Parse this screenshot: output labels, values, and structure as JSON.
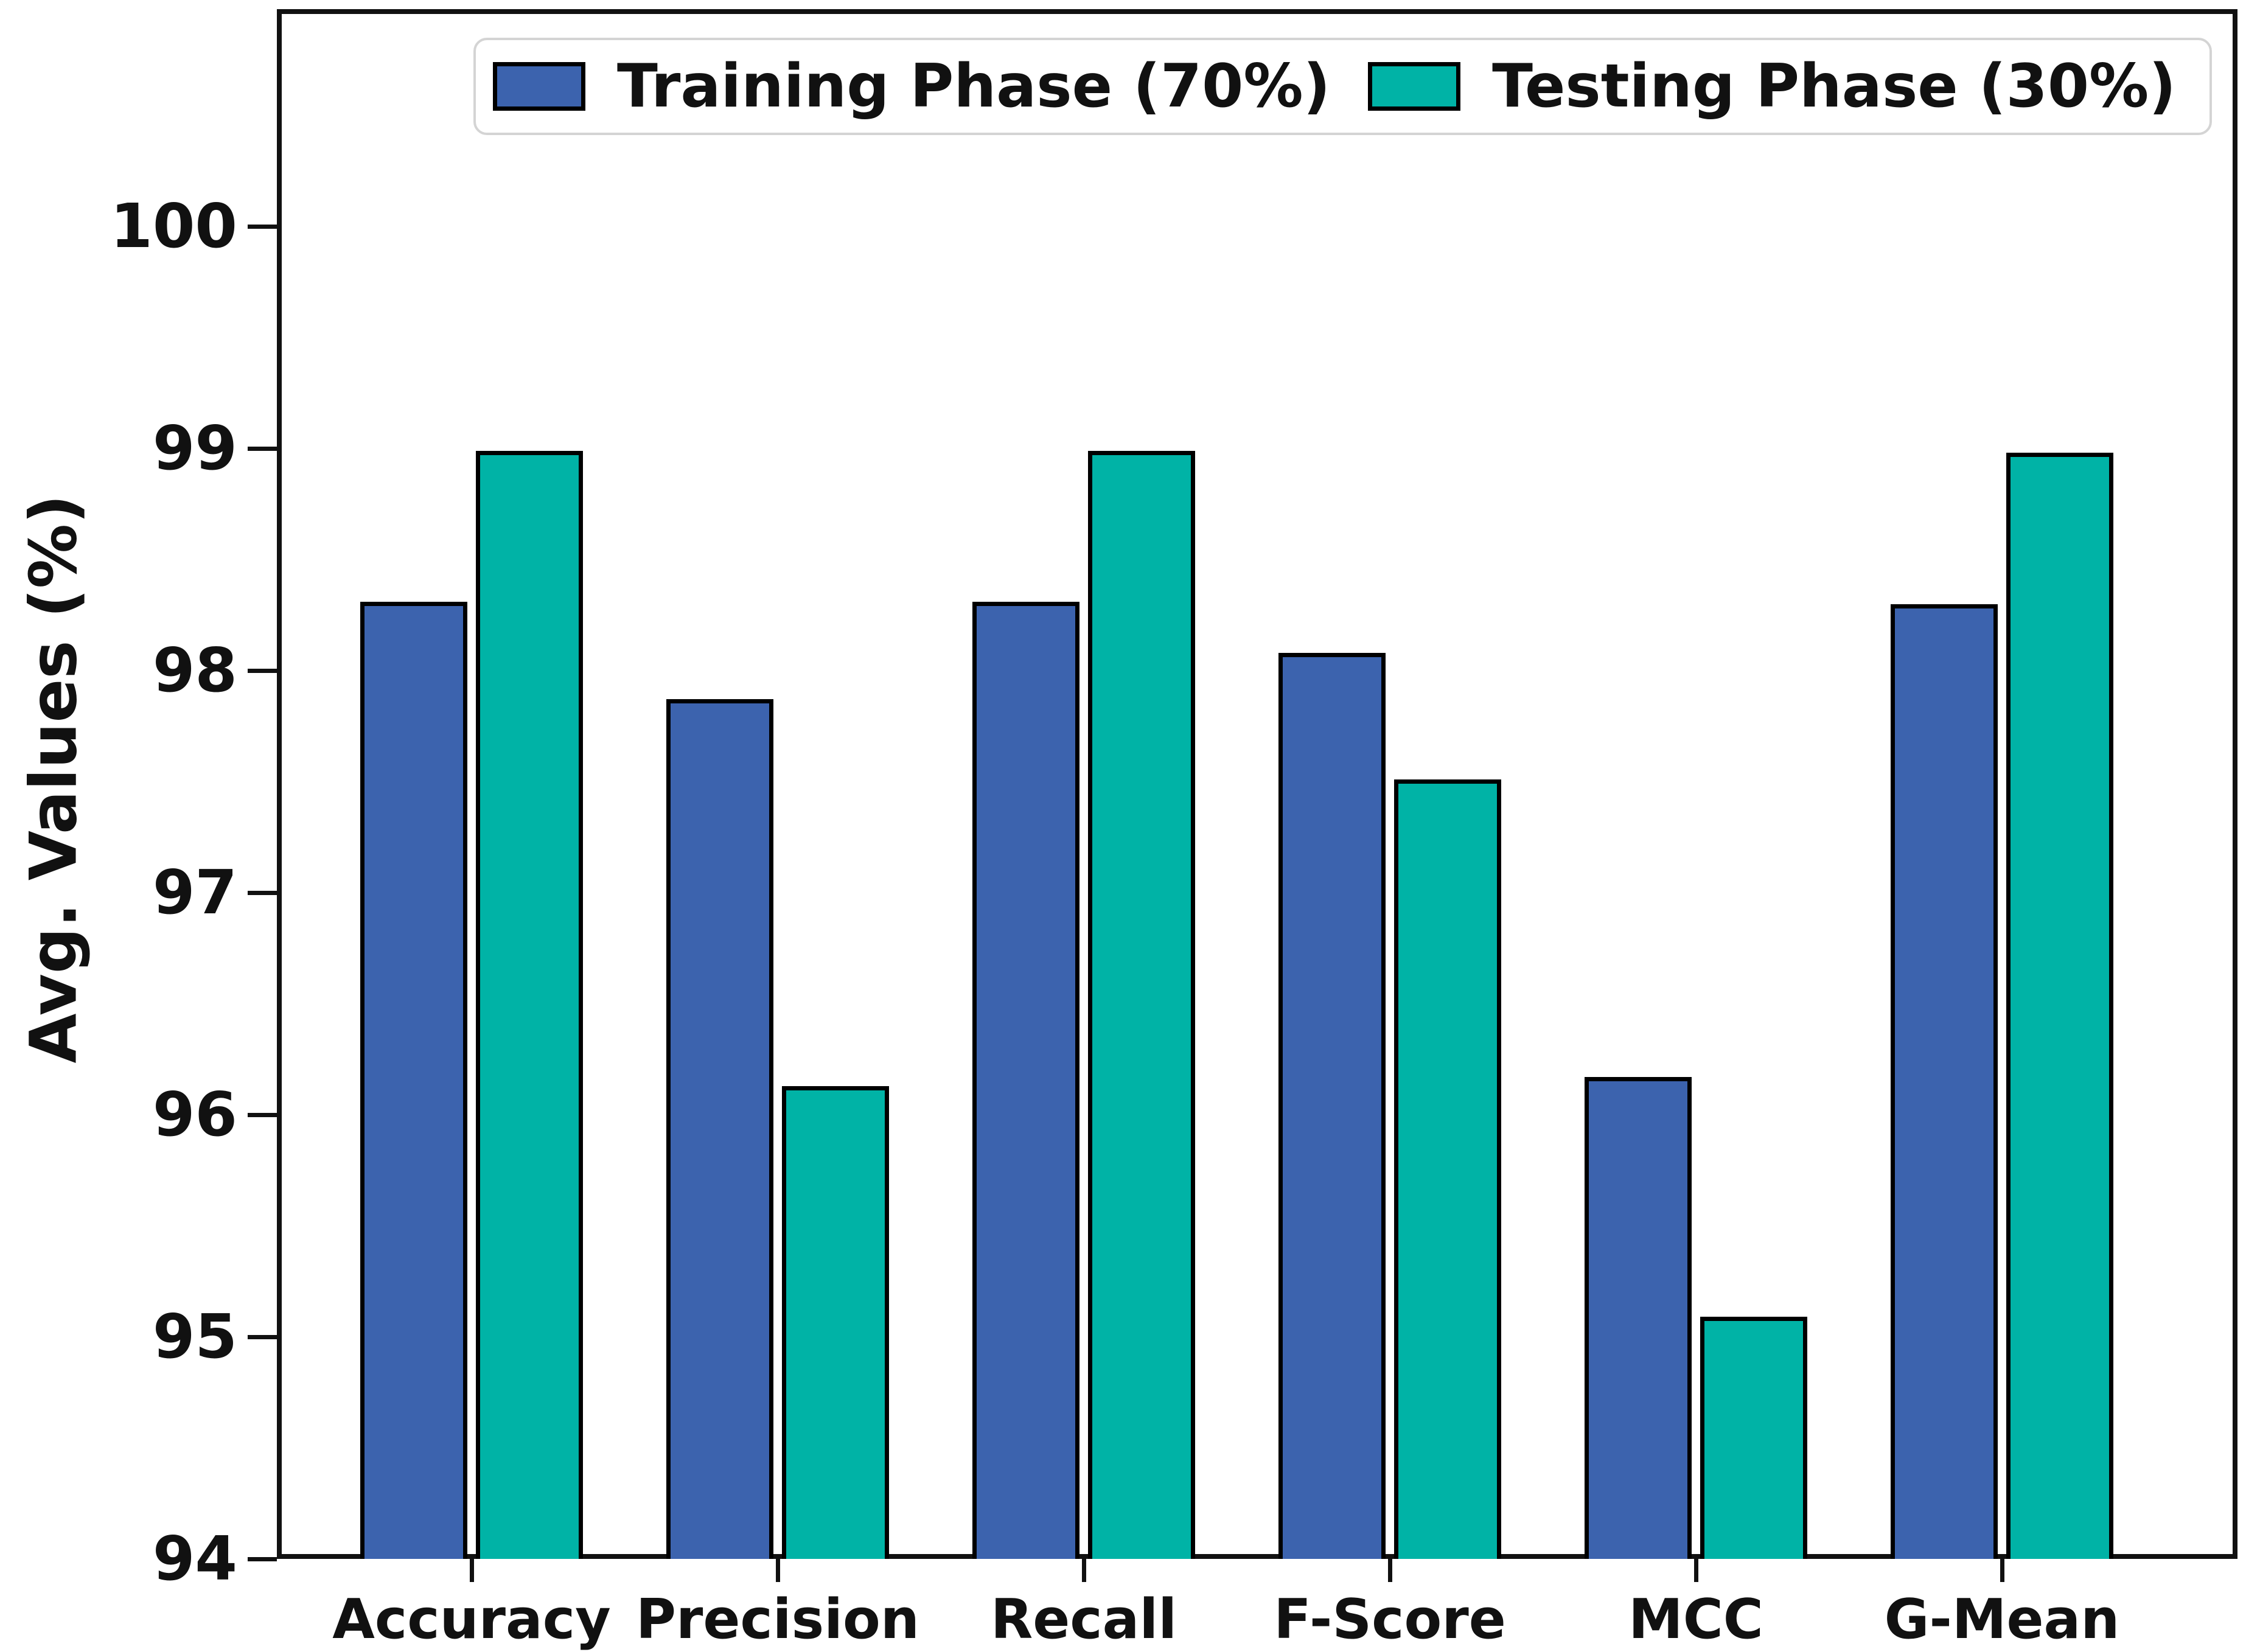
{
  "chart_data": {
    "type": "bar",
    "title": "",
    "categories": [
      "Accuracy",
      "Precision",
      "Recall",
      "F-Score",
      "MCC",
      "G-Mean"
    ],
    "series": [
      {
        "name": "Training Phase (70%)",
        "color": "#3c63ae",
        "values": [
          98.31,
          97.87,
          98.31,
          98.08,
          96.17,
          98.3
        ]
      },
      {
        "name": "Testing Phase (30%)",
        "color": "#00b3a6",
        "values": [
          98.99,
          96.13,
          98.99,
          97.51,
          95.09,
          98.98
        ]
      }
    ],
    "xlabel": "",
    "ylabel": "Avg. Values (%)",
    "ylim": [
      94,
      101
    ],
    "yticks": [
      94,
      95,
      96,
      97,
      98,
      99,
      100
    ],
    "grid": false,
    "legend_position": "top-inside",
    "bar_edge_color": "#000000",
    "axis_color": "#111111"
  }
}
